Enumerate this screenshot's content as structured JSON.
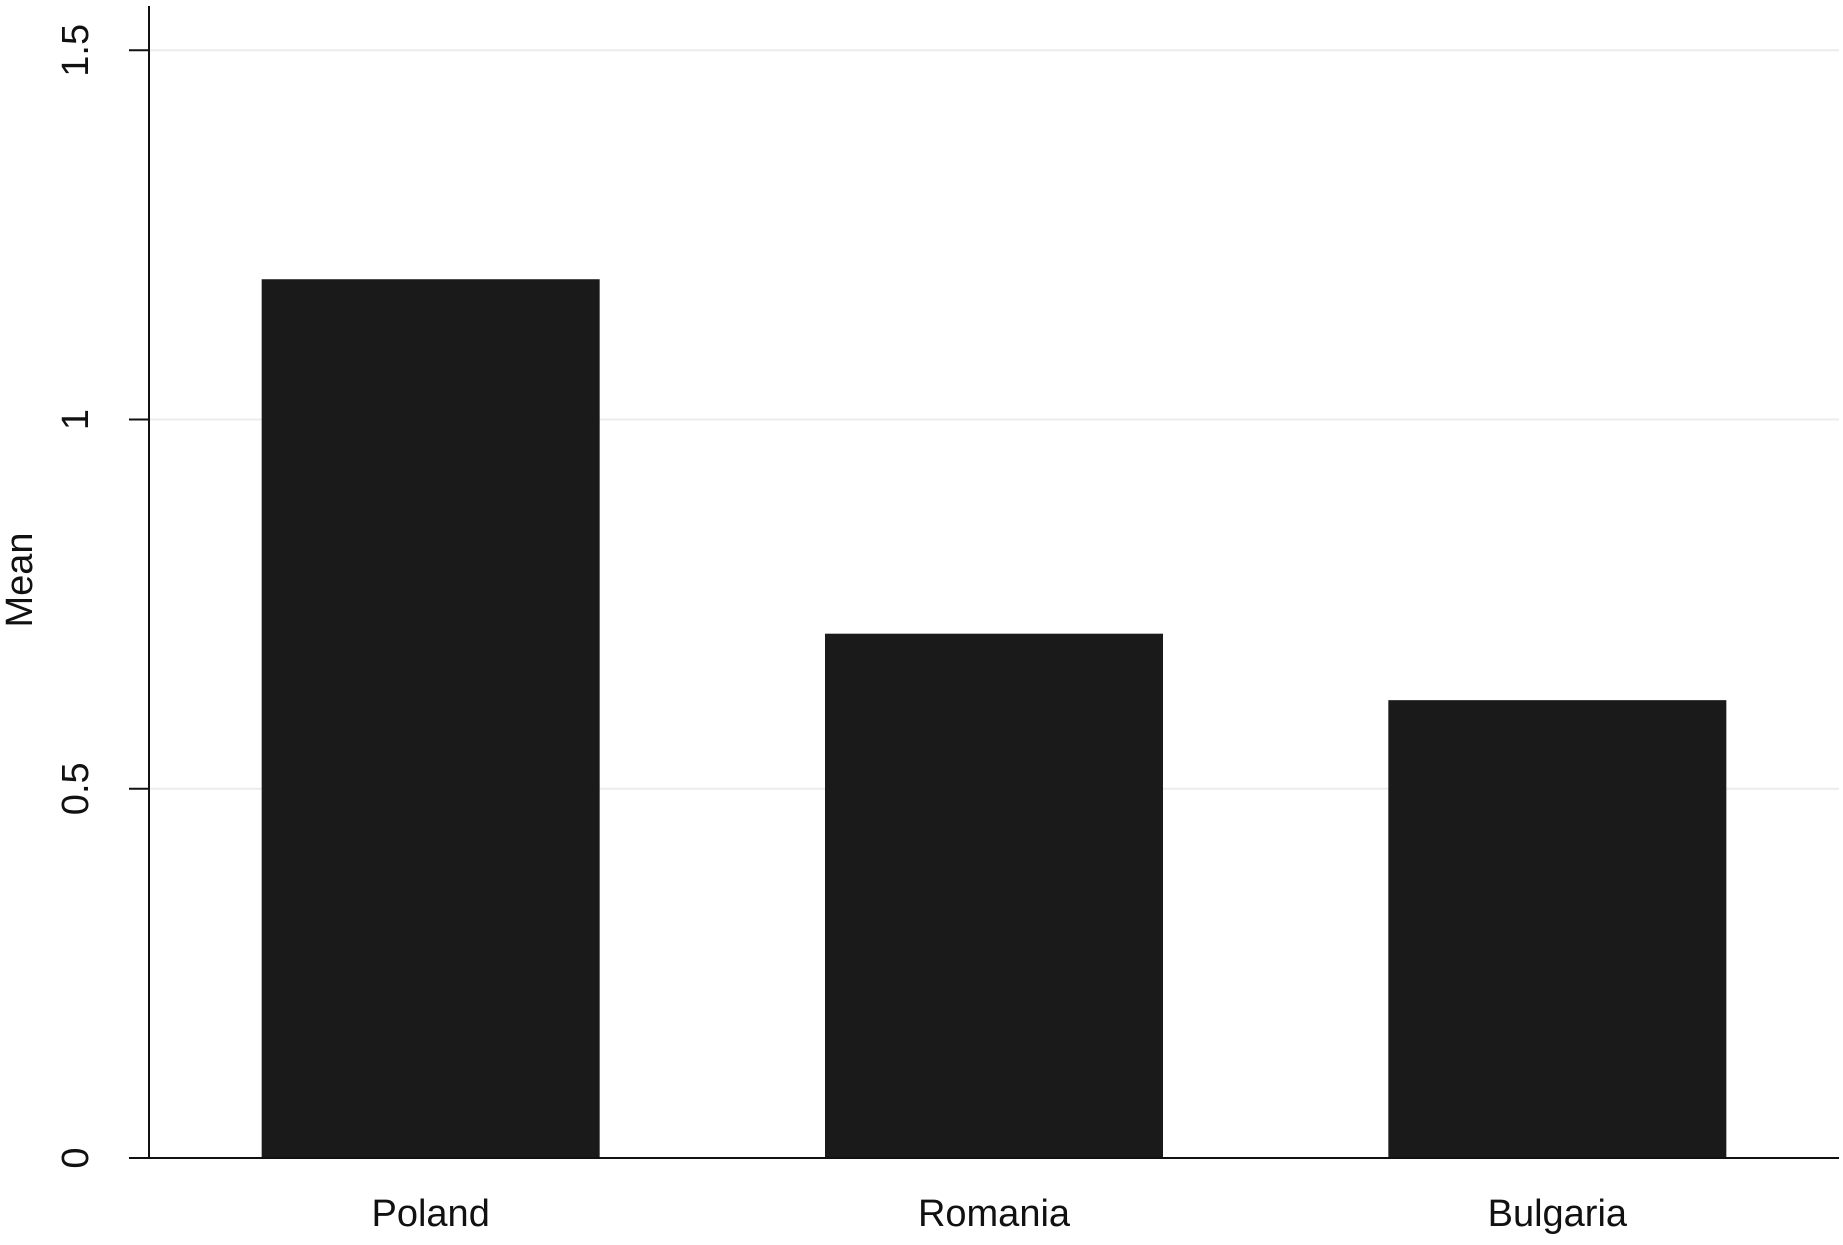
{
  "chart_data": {
    "type": "bar",
    "y_label": "Mean",
    "categories": [
      "Poland",
      "Romania",
      "Bulgaria"
    ],
    "values": [
      1.19,
      0.71,
      0.62
    ],
    "color": "#1a1a1a",
    "ylim": [
      0,
      1.56
    ],
    "yticks": [
      0,
      0.5,
      1,
      1.5
    ],
    "grid": true
  }
}
